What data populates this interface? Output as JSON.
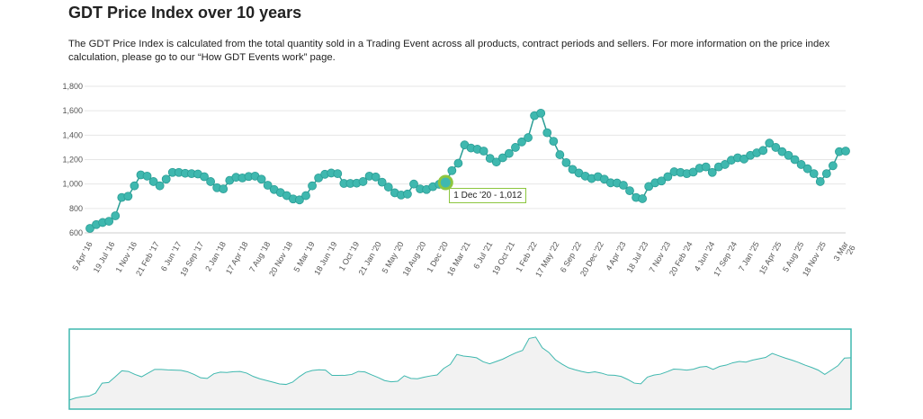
{
  "title": "GDT Price Index over 10 years",
  "description": "The GDT Price Index is calculated from the total quantity sold in a Trading Event across all products, contract periods and sellers. For more information on the price index calculation, please go to our “How GDT Events work” page.",
  "tooltip": {
    "label": "1 Dec '20  -  1,012",
    "index": 56
  },
  "colors": {
    "series": "#3fb8af",
    "series_stroke": "#2a9d95",
    "highlight": "#8cc63f",
    "grid": "#e6e6e6",
    "navigator_border": "#3fb8af",
    "navigator_fill": "#f2f2f2"
  },
  "chart_data": {
    "type": "line",
    "title": "GDT Price Index over 10 years",
    "ylim": [
      600,
      1800
    ],
    "yticks": [
      "600",
      "800",
      "1,000",
      "1,200",
      "1,400",
      "1,600",
      "1,800"
    ],
    "ytick_values": [
      600,
      800,
      1000,
      1200,
      1400,
      1600,
      1800
    ],
    "grid": true,
    "markers": true,
    "navigator": true,
    "xtick_labels": [
      "5 Apr '16",
      "19 Jul '16",
      "1 Nov '16",
      "21 Feb '17",
      "6 Jun '17",
      "19 Sep '17",
      "2 Jan '18",
      "17 Apr '18",
      "7 Aug '18",
      "20 Nov '18",
      "5 Mar '19",
      "18 Jun '19",
      "1 Oct '19",
      "21 Jan '20",
      "5 May '20",
      "18 Aug '20",
      "1 Dec '20",
      "16 Mar '21",
      "6 Jul '21",
      "19 Oct '21",
      "1 Feb '22",
      "17 May '22",
      "6 Sep '22",
      "20 Dec '22",
      "4 Apr '23",
      "18 Jul '23",
      "7 Nov '23",
      "20 Feb '24",
      "4 Jun '24",
      "17 Sep '24",
      "7 Jan '25",
      "15 Apr '25",
      "5 Aug '25",
      "18 Nov '25",
      "3 Mar '26"
    ],
    "x": [
      "2016-04",
      "2016-05",
      "2016-06",
      "2016-07",
      "2016-08",
      "2016-09",
      "2016-10",
      "2016-11",
      "2016-12",
      "2017-01",
      "2017-02",
      "2017-03",
      "2017-04",
      "2017-05",
      "2017-06",
      "2017-07",
      "2017-08",
      "2017-09",
      "2017-10",
      "2017-11",
      "2017-12",
      "2018-01",
      "2018-02",
      "2018-03",
      "2018-04",
      "2018-05",
      "2018-06",
      "2018-07",
      "2018-08",
      "2018-09",
      "2018-10",
      "2018-11",
      "2018-12",
      "2019-01",
      "2019-02",
      "2019-03",
      "2019-04",
      "2019-05",
      "2019-06",
      "2019-07",
      "2019-08",
      "2019-09",
      "2019-10",
      "2019-11",
      "2019-12",
      "2020-01",
      "2020-02",
      "2020-03",
      "2020-04",
      "2020-05",
      "2020-06",
      "2020-07",
      "2020-08",
      "2020-09",
      "2020-10",
      "2020-11",
      "2020-12",
      "2021-01",
      "2021-02",
      "2021-03",
      "2021-04",
      "2021-05",
      "2021-06",
      "2021-07",
      "2021-08",
      "2021-09",
      "2021-10",
      "2021-11",
      "2021-12",
      "2022-01",
      "2022-02",
      "2022-03",
      "2022-04",
      "2022-05",
      "2022-06",
      "2022-07",
      "2022-08",
      "2022-09",
      "2022-10",
      "2022-11",
      "2022-12",
      "2023-01",
      "2023-02",
      "2023-03",
      "2023-04",
      "2023-05",
      "2023-06",
      "2023-07",
      "2023-08",
      "2023-09",
      "2023-10",
      "2023-11",
      "2023-12",
      "2024-01",
      "2024-02",
      "2024-03",
      "2024-04",
      "2024-05",
      "2024-06",
      "2024-07",
      "2024-08",
      "2024-09",
      "2024-10",
      "2024-11",
      "2024-12",
      "2025-01",
      "2025-02",
      "2025-03",
      "2025-04",
      "2025-05",
      "2025-06",
      "2025-07",
      "2025-08",
      "2025-09",
      "2025-10",
      "2025-11",
      "2025-12",
      "2026-01",
      "2026-02",
      "2026-03"
    ],
    "values": [
      637,
      668,
      685,
      695,
      740,
      890,
      900,
      985,
      1075,
      1065,
      1020,
      985,
      1040,
      1095,
      1095,
      1088,
      1085,
      1082,
      1060,
      1020,
      970,
      960,
      1030,
      1055,
      1050,
      1062,
      1065,
      1040,
      990,
      955,
      930,
      905,
      878,
      870,
      905,
      985,
      1050,
      1080,
      1090,
      1085,
      1005,
      1005,
      1007,
      1020,
      1065,
      1058,
      1015,
      975,
      928,
      910,
      918,
      1000,
      960,
      955,
      978,
      998,
      1012,
      1110,
      1170,
      1320,
      1295,
      1285,
      1270,
      1210,
      1180,
      1215,
      1250,
      1300,
      1345,
      1380,
      1560,
      1580,
      1420,
      1350,
      1240,
      1175,
      1120,
      1090,
      1065,
      1045,
      1060,
      1040,
      1010,
      1008,
      990,
      945,
      890,
      880,
      980,
      1010,
      1025,
      1060,
      1100,
      1095,
      1085,
      1098,
      1130,
      1140,
      1095,
      1140,
      1160,
      1195,
      1215,
      1205,
      1235,
      1255,
      1275,
      1335,
      1300,
      1265,
      1235,
      1200,
      1160,
      1125,
      1085,
      1020,
      1085,
      1150,
      1265,
      1270
    ]
  }
}
